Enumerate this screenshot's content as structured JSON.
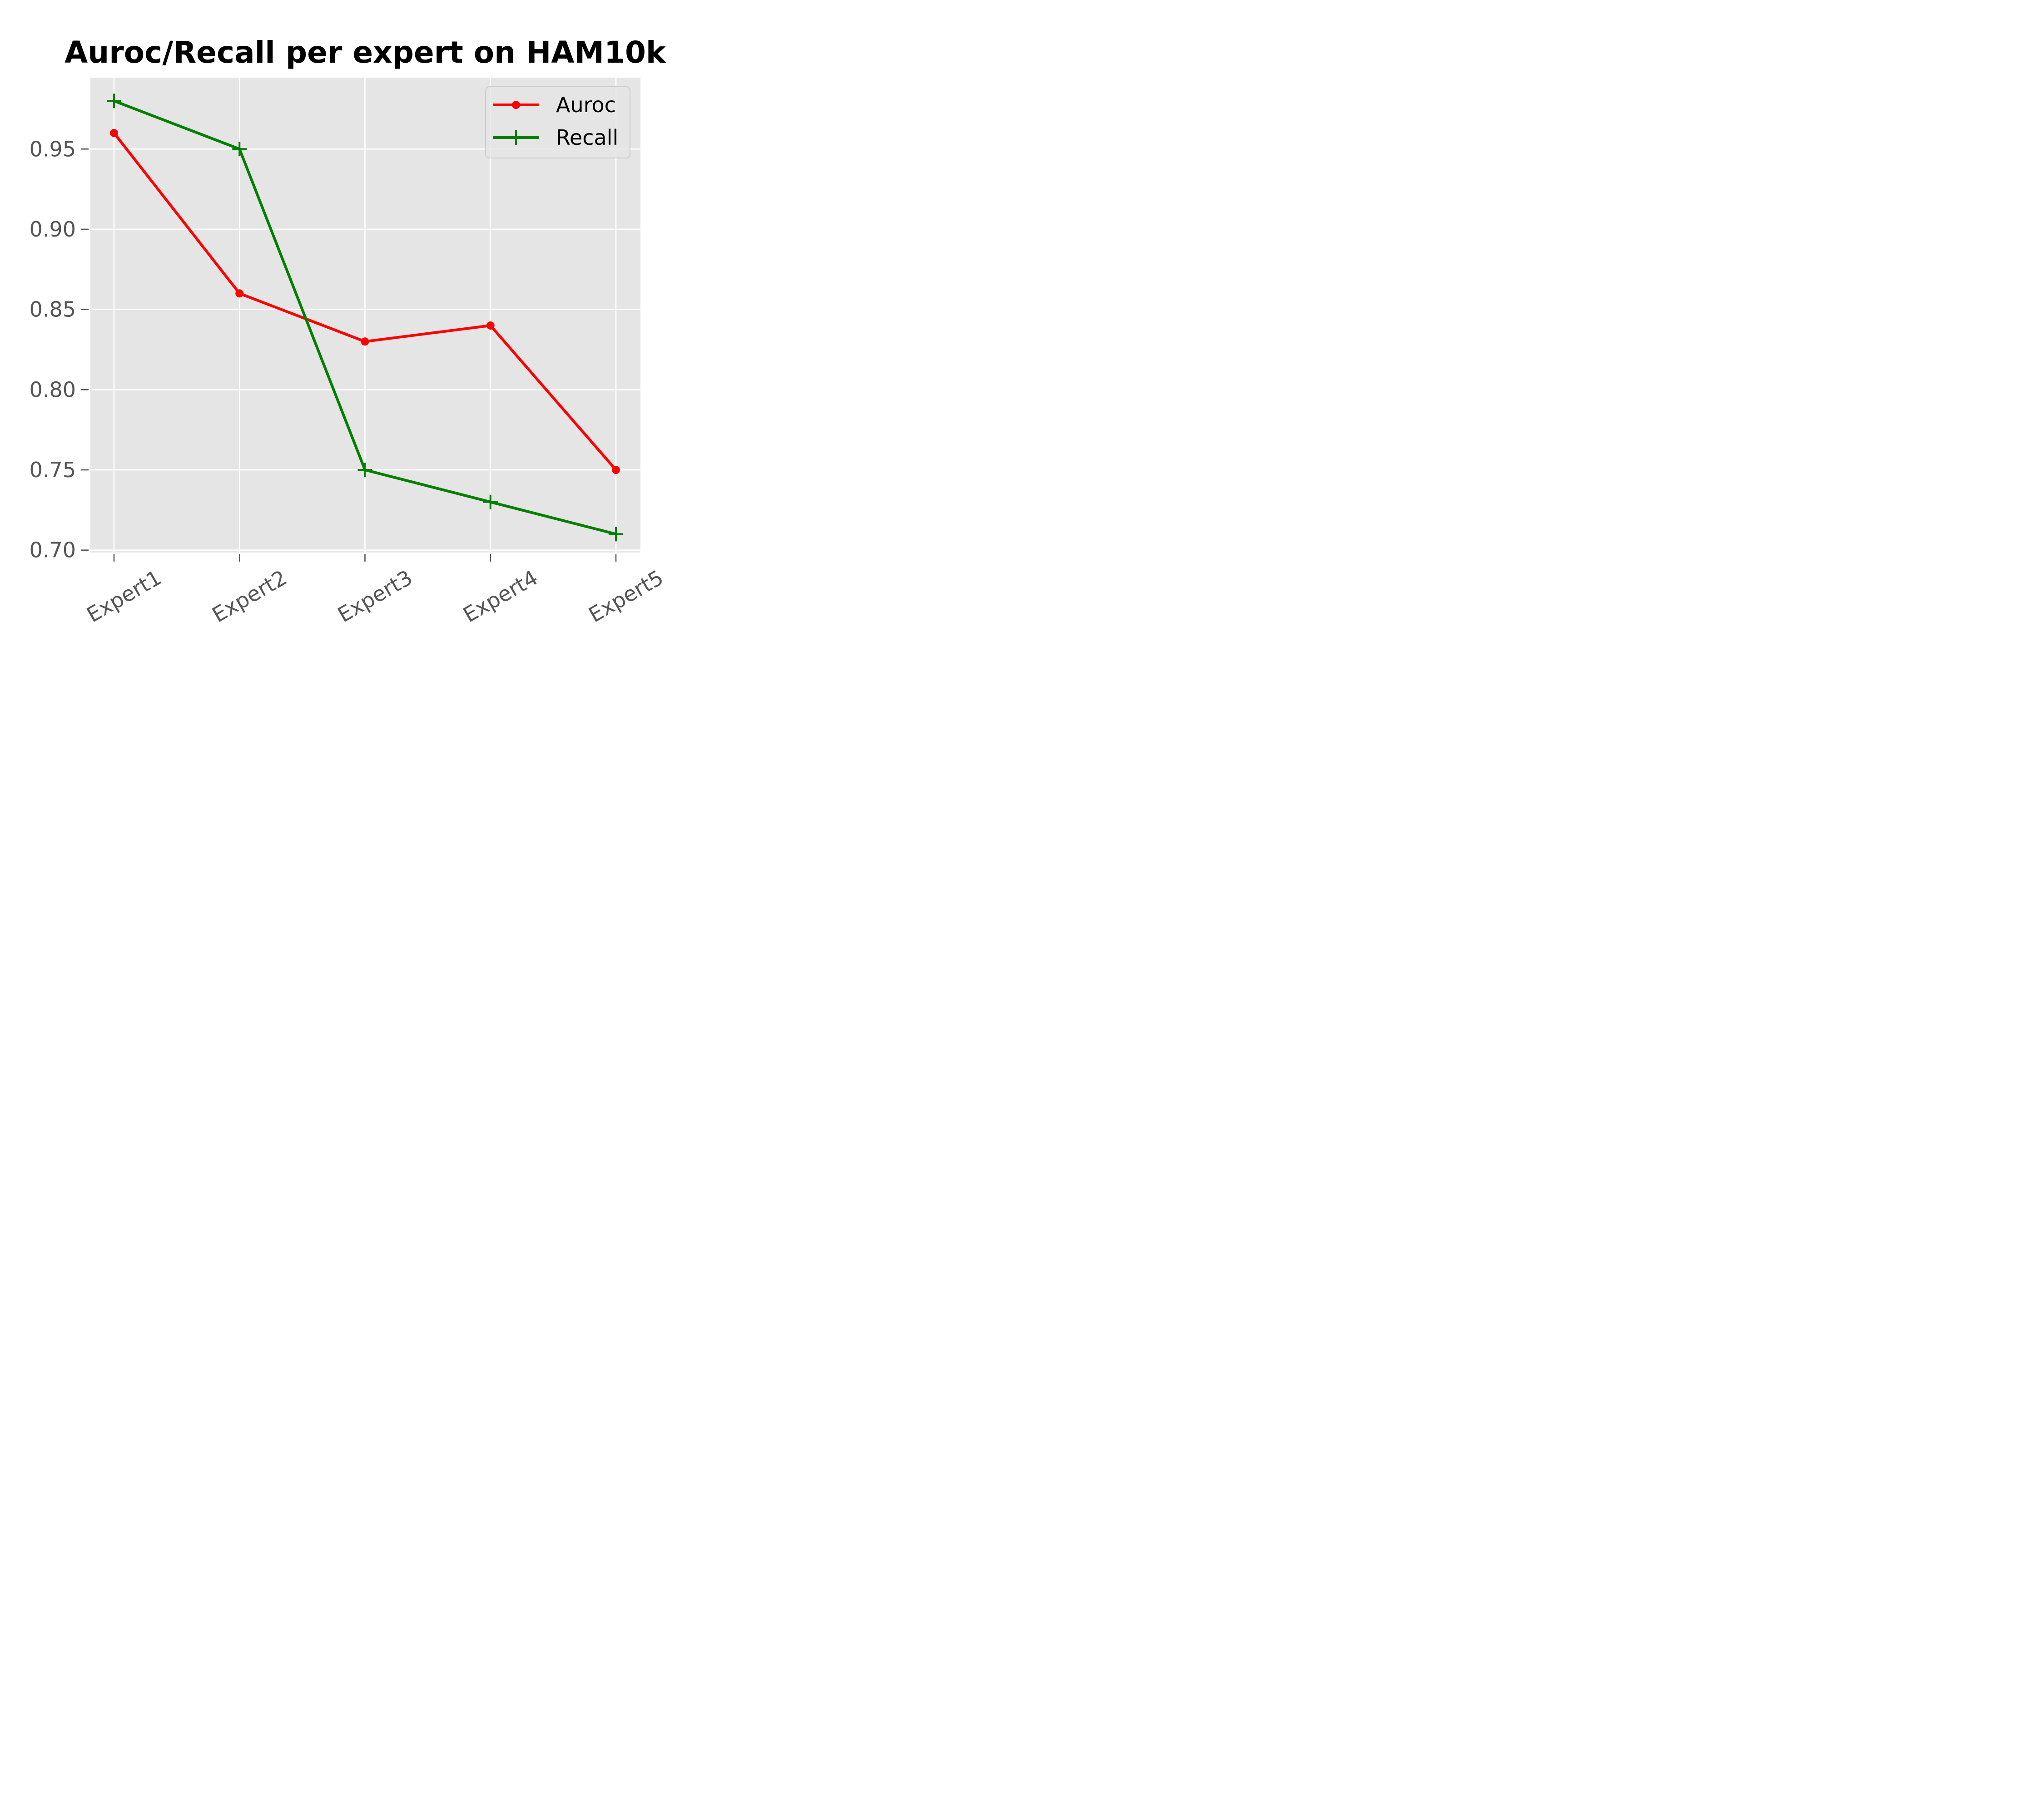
{
  "chart_data": {
    "type": "line",
    "title": "Auroc/Recall per expert on HAM10k",
    "xlabel": "",
    "ylabel": "",
    "categories": [
      "Expert1",
      "Expert2",
      "Expert3",
      "Expert4",
      "Expert5"
    ],
    "series": [
      {
        "name": "Auroc",
        "values": [
          0.96,
          0.86,
          0.83,
          0.84,
          0.75
        ],
        "color": "#ff0000",
        "marker": "circle"
      },
      {
        "name": "Recall",
        "values": [
          0.98,
          0.95,
          0.75,
          0.73,
          0.71
        ],
        "color": "#008000",
        "marker": "plus"
      }
    ],
    "ylim": [
      0.6985,
      0.9945
    ],
    "yticks": [
      "0.70",
      "0.75",
      "0.80",
      "0.85",
      "0.90",
      "0.95"
    ],
    "xtick_rotation": -30,
    "grid": true,
    "background": "#e5e5e5",
    "tick_color": "#555555",
    "legend_position": "upper right"
  }
}
